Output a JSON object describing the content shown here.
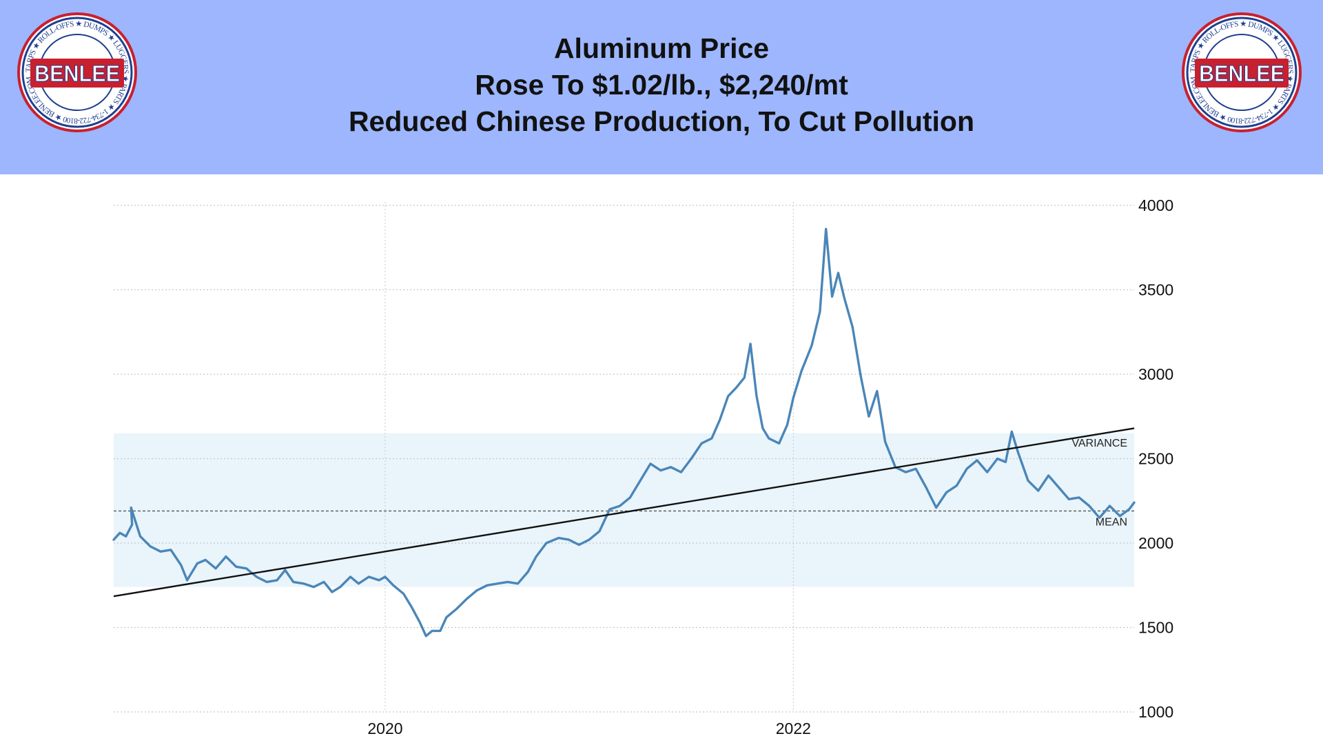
{
  "header": {
    "title_lines": [
      "Aluminum Price",
      "Rose To $1.02/lb., $2,240/mt",
      "Reduced Chinese Production, To Cut Pollution"
    ],
    "background_color": "#9db6fd"
  },
  "logo": {
    "name": "benlee-logo",
    "text_center": "BENLEE",
    "ring_text": "TARPS ★ ROLL-OFFS ★ DUMPS ★ LUGGERS ★ PARTS ★ 1-734-722-8100 ★ BENLEE.COM",
    "colors": {
      "ring": "#c8202f",
      "band": "#1f3f8f",
      "fill": "#ffffff",
      "text": "#1f3f8f"
    }
  },
  "chart_data": {
    "type": "line",
    "title": "",
    "xlabel": "",
    "ylabel": "",
    "y_axis_position": "right",
    "ylim": [
      1000,
      4000
    ],
    "y_ticks": [
      1000,
      1500,
      2000,
      2500,
      3000,
      3500,
      4000
    ],
    "x_range": [
      2018.67,
      2023.67
    ],
    "x_ticks": [
      {
        "value": 2020,
        "label": "2020"
      },
      {
        "value": 2022,
        "label": "2022"
      }
    ],
    "grid": true,
    "series": [
      {
        "color": "#4a86b8",
        "points": [
          [
            2018.67,
            2020
          ],
          [
            2018.7,
            2060
          ],
          [
            2018.73,
            2040
          ],
          [
            2018.76,
            2110
          ],
          [
            2018.755,
            2210
          ],
          [
            2018.8,
            2040
          ],
          [
            2018.85,
            1980
          ],
          [
            2018.9,
            1950
          ],
          [
            2018.95,
            1960
          ],
          [
            2019.0,
            1870
          ],
          [
            2019.03,
            1780
          ],
          [
            2019.08,
            1880
          ],
          [
            2019.12,
            1900
          ],
          [
            2019.17,
            1850
          ],
          [
            2019.22,
            1920
          ],
          [
            2019.27,
            1860
          ],
          [
            2019.32,
            1850
          ],
          [
            2019.37,
            1800
          ],
          [
            2019.42,
            1770
          ],
          [
            2019.47,
            1780
          ],
          [
            2019.51,
            1840
          ],
          [
            2019.55,
            1770
          ],
          [
            2019.6,
            1760
          ],
          [
            2019.65,
            1740
          ],
          [
            2019.7,
            1770
          ],
          [
            2019.74,
            1710
          ],
          [
            2019.78,
            1740
          ],
          [
            2019.83,
            1800
          ],
          [
            2019.87,
            1760
          ],
          [
            2019.92,
            1800
          ],
          [
            2019.97,
            1780
          ],
          [
            2020.0,
            1800
          ],
          [
            2020.04,
            1750
          ],
          [
            2020.09,
            1700
          ],
          [
            2020.13,
            1620
          ],
          [
            2020.17,
            1530
          ],
          [
            2020.2,
            1450
          ],
          [
            2020.23,
            1480
          ],
          [
            2020.27,
            1480
          ],
          [
            2020.3,
            1560
          ],
          [
            2020.35,
            1610
          ],
          [
            2020.4,
            1670
          ],
          [
            2020.45,
            1720
          ],
          [
            2020.5,
            1750
          ],
          [
            2020.55,
            1760
          ],
          [
            2020.6,
            1770
          ],
          [
            2020.65,
            1760
          ],
          [
            2020.7,
            1830
          ],
          [
            2020.74,
            1920
          ],
          [
            2020.79,
            2000
          ],
          [
            2020.85,
            2030
          ],
          [
            2020.9,
            2020
          ],
          [
            2020.95,
            1990
          ],
          [
            2021.0,
            2020
          ],
          [
            2021.05,
            2070
          ],
          [
            2021.1,
            2200
          ],
          [
            2021.15,
            2220
          ],
          [
            2021.2,
            2270
          ],
          [
            2021.25,
            2370
          ],
          [
            2021.3,
            2470
          ],
          [
            2021.35,
            2430
          ],
          [
            2021.4,
            2450
          ],
          [
            2021.45,
            2420
          ],
          [
            2021.5,
            2500
          ],
          [
            2021.55,
            2590
          ],
          [
            2021.6,
            2620
          ],
          [
            2021.64,
            2730
          ],
          [
            2021.68,
            2870
          ],
          [
            2021.72,
            2920
          ],
          [
            2021.76,
            2980
          ],
          [
            2021.79,
            3180
          ],
          [
            2021.82,
            2870
          ],
          [
            2021.85,
            2680
          ],
          [
            2021.88,
            2620
          ],
          [
            2021.93,
            2590
          ],
          [
            2021.97,
            2700
          ],
          [
            2022.0,
            2860
          ],
          [
            2022.04,
            3020
          ],
          [
            2022.09,
            3170
          ],
          [
            2022.13,
            3370
          ],
          [
            2022.16,
            3860
          ],
          [
            2022.19,
            3460
          ],
          [
            2022.22,
            3600
          ],
          [
            2022.25,
            3450
          ],
          [
            2022.29,
            3280
          ],
          [
            2022.33,
            2990
          ],
          [
            2022.37,
            2750
          ],
          [
            2022.41,
            2900
          ],
          [
            2022.45,
            2600
          ],
          [
            2022.5,
            2450
          ],
          [
            2022.55,
            2420
          ],
          [
            2022.6,
            2440
          ],
          [
            2022.65,
            2330
          ],
          [
            2022.7,
            2210
          ],
          [
            2022.75,
            2300
          ],
          [
            2022.8,
            2340
          ],
          [
            2022.85,
            2440
          ],
          [
            2022.9,
            2490
          ],
          [
            2022.95,
            2420
          ],
          [
            2023.0,
            2500
          ],
          [
            2023.04,
            2480
          ],
          [
            2023.07,
            2660
          ],
          [
            2023.1,
            2540
          ],
          [
            2023.15,
            2370
          ],
          [
            2023.2,
            2310
          ],
          [
            2023.25,
            2400
          ],
          [
            2023.3,
            2330
          ],
          [
            2023.35,
            2260
          ],
          [
            2023.4,
            2270
          ],
          [
            2023.45,
            2220
          ],
          [
            2023.5,
            2150
          ],
          [
            2023.55,
            2220
          ],
          [
            2023.6,
            2160
          ],
          [
            2023.645,
            2200
          ],
          [
            2023.67,
            2240
          ]
        ]
      }
    ],
    "trend_line": {
      "x": [
        2018.67,
        2023.67
      ],
      "y": [
        1685,
        2680
      ],
      "color": "#111111"
    },
    "mean": {
      "value": 2190,
      "label": "MEAN"
    },
    "variance_band": {
      "range": [
        1740,
        2650
      ],
      "label": "VARIANCE",
      "color": "#e9f4fb"
    }
  }
}
